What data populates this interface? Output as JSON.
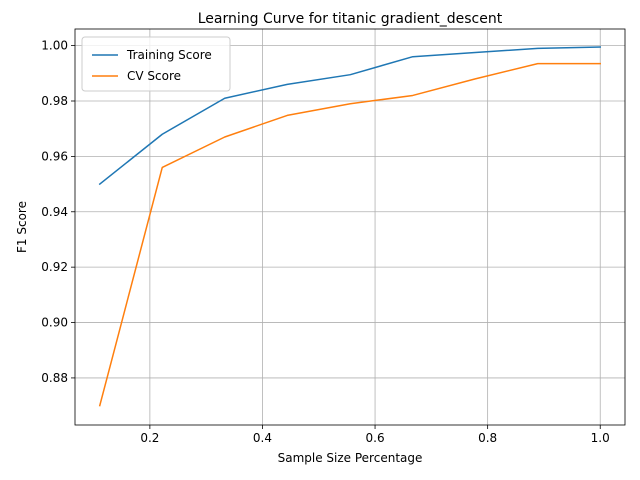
{
  "chart_data": {
    "type": "line",
    "title": "Learning Curve for titanic gradient_descent",
    "xlabel": "Sample Size Percentage",
    "ylabel": "F1 Score",
    "xlim": [
      0.067,
      1.044
    ],
    "ylim": [
      0.863,
      1.006
    ],
    "xticks": [
      0.2,
      0.4,
      0.6,
      0.8,
      1.0
    ],
    "xtick_labels": [
      "0.2",
      "0.4",
      "0.6",
      "0.8",
      "1.0"
    ],
    "yticks": [
      0.88,
      0.9,
      0.92,
      0.94,
      0.96,
      0.98,
      1.0
    ],
    "ytick_labels": [
      "0.88",
      "0.90",
      "0.92",
      "0.94",
      "0.96",
      "0.98",
      "1.00"
    ],
    "grid": true,
    "legend_position": "top-left",
    "x": [
      0.111,
      0.222,
      0.333,
      0.444,
      0.556,
      0.667,
      0.778,
      0.889,
      1.0
    ],
    "series": [
      {
        "name": "Training Score",
        "color": "#1f77b4",
        "values": [
          0.95,
          0.968,
          0.981,
          0.986,
          0.9895,
          0.996,
          0.9975,
          0.999,
          0.9995
        ]
      },
      {
        "name": "CV Score",
        "color": "#ff7f0e",
        "values": [
          0.87,
          0.956,
          0.967,
          0.9748,
          0.979,
          0.982,
          0.988,
          0.9935,
          0.9935
        ]
      }
    ]
  }
}
